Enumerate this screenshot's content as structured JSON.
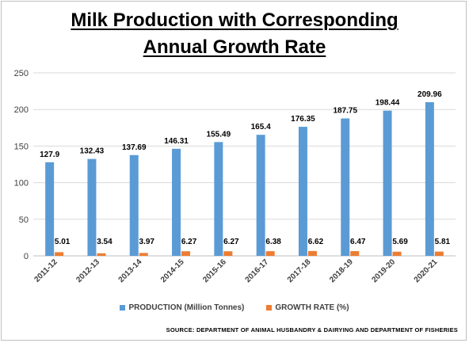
{
  "title_line1": "Milk Production with Corresponding",
  "title_line2": "Annual Growth Rate",
  "source": "SOURCE:  DEPARTMENT  OF ANIMAL  HUSBANDRY & DAIRYING AND DEPARTMENT  OF FISHERIES",
  "colors": {
    "production": "#5b9bd5",
    "growth": "#ed7d31",
    "grid": "#d9d9d9",
    "text": "#404040"
  },
  "chart_data": {
    "type": "bar",
    "title": "Milk Production with Corresponding Annual Growth Rate",
    "categories": [
      "2011-12",
      "2012-13",
      "2013-14",
      "2014-15",
      "2015-16",
      "2016-17",
      "2017-18",
      "2018-19",
      "2019-20",
      "2020-21"
    ],
    "series": [
      {
        "name": "PRODUCTION (Million Tonnes)",
        "values": [
          127.9,
          132.43,
          137.69,
          146.31,
          155.49,
          165.4,
          176.35,
          187.75,
          198.44,
          209.96
        ]
      },
      {
        "name": "GROWTH RATE (%)",
        "values": [
          5.01,
          3.54,
          3.97,
          6.27,
          6.27,
          6.38,
          6.62,
          6.47,
          5.69,
          5.81
        ]
      }
    ],
    "yticks": [
      0,
      50,
      100,
      150,
      200,
      250
    ],
    "ylim": [
      0,
      250
    ],
    "grid": true,
    "legend": "bottom"
  }
}
